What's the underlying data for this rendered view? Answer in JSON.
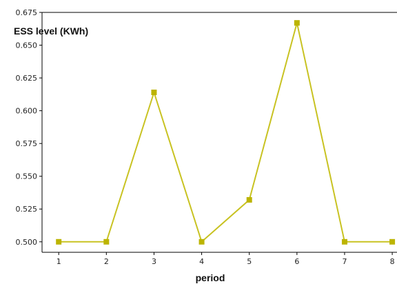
{
  "chart_data": {
    "type": "line",
    "title": "",
    "xlabel": "period",
    "ylabel": "ESS level (KWh)",
    "x": [
      1,
      2,
      3,
      4,
      5,
      6,
      7,
      8
    ],
    "series": [
      {
        "values": [
          0.5,
          0.5,
          0.614,
          0.5,
          0.532,
          0.667,
          0.5,
          0.5
        ]
      }
    ],
    "xlim": [
      0.65,
      8.1
    ],
    "ylim": [
      0.492,
      0.675
    ],
    "xticks": [
      "1",
      "2",
      "3",
      "4",
      "5",
      "6",
      "7",
      "8"
    ],
    "yticks": [
      "0.500",
      "0.525",
      "0.550",
      "0.575",
      "0.600",
      "0.625",
      "0.650",
      "0.675"
    ],
    "grid": false,
    "colors": {
      "series": "#c8c221",
      "marker": "#bcb400",
      "axis": "#000000"
    }
  }
}
